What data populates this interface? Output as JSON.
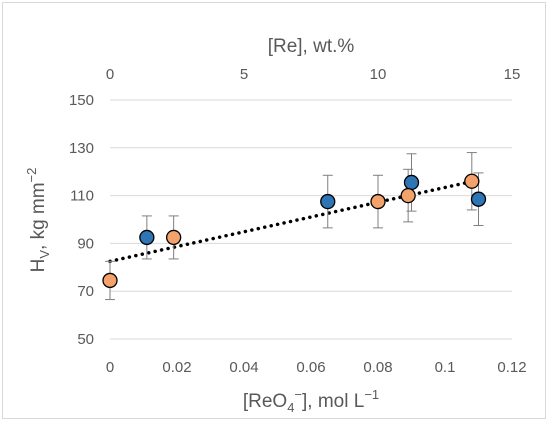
{
  "chart_data": {
    "type": "scatter",
    "title": "",
    "xlabel_bottom": {
      "main": "[ReO",
      "sub": "4",
      "sup": "−",
      "rest": "], mol L",
      "sup2": "−1"
    },
    "xlabel_top": "[Re], wt.%",
    "ylabel": {
      "main": "H",
      "sub": "V",
      "rest": ", kg mm",
      "sup": "−2"
    },
    "x_bottom": {
      "min": 0,
      "max": 0.12,
      "ticks": [
        0,
        0.02,
        0.04,
        0.06,
        0.08,
        0.1,
        0.12
      ],
      "tick_labels": [
        "0",
        "0.02",
        "0.04",
        "0.06",
        "0.08",
        "0.1",
        "0.12"
      ]
    },
    "x_top": {
      "min": 0,
      "max": 15,
      "ticks": [
        0,
        5,
        10,
        15
      ],
      "tick_labels": [
        "0",
        "5",
        "10",
        "15"
      ]
    },
    "y": {
      "min": 50,
      "max": 150,
      "ticks": [
        50,
        70,
        90,
        110,
        130,
        150
      ],
      "tick_labels": [
        "50",
        "70",
        "90",
        "110",
        "130",
        "150"
      ]
    },
    "grid": "horizontal",
    "series": [
      {
        "color": "#2e75b6",
        "points": [
          {
            "x": 0.011,
            "y": 92.5,
            "err": 9
          },
          {
            "x": 0.065,
            "y": 107.5,
            "err": 11
          },
          {
            "x": 0.09,
            "y": 115.5,
            "err": 12
          },
          {
            "x": 0.11,
            "y": 108.5,
            "err": 11
          }
        ]
      },
      {
        "color": "#f4a26b",
        "points": [
          {
            "x": 0,
            "y": 74.5,
            "err": 8
          },
          {
            "x": 0.019,
            "y": 92.5,
            "err": 9
          },
          {
            "x": 0.08,
            "y": 107.5,
            "err": 11
          },
          {
            "x": 0.089,
            "y": 110,
            "err": 11
          },
          {
            "x": 0.108,
            "y": 116,
            "err": 12
          }
        ]
      }
    ],
    "trendline": {
      "style": "dotted",
      "color": "#000000",
      "x": [
        0,
        0.11
      ],
      "y": [
        82.5,
        116.5
      ]
    }
  }
}
